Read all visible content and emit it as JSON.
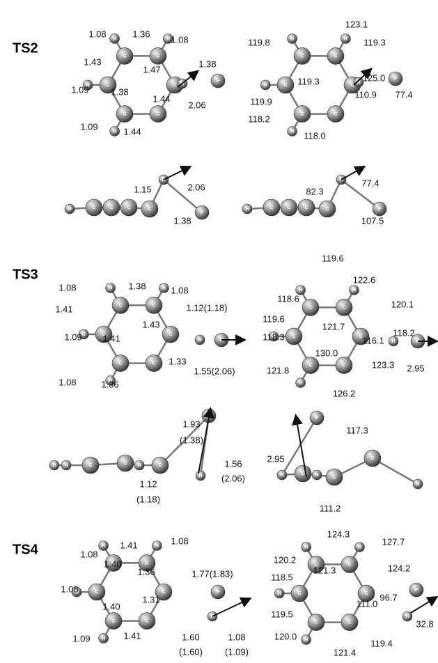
{
  "structures": [
    {
      "name": "TS2",
      "views": [
        {
          "labels": [
            "1.08",
            "1.36",
            "1.08",
            "1.43",
            "1.38",
            "1.47",
            "1.09",
            "1.38",
            "1.44",
            "2.06",
            "1.09",
            "1.44"
          ],
          "atoms": [
            "C",
            "C",
            "C",
            "C",
            "C",
            "C",
            "H",
            "H",
            "H",
            "H",
            "H",
            "F"
          ]
        },
        {
          "labels": [
            "123.1",
            "119.8",
            "119.3",
            "119.3",
            "125.0",
            "110.9",
            "119.9",
            "77.4",
            "118.2",
            "118.0"
          ],
          "atoms": [
            "C",
            "C",
            "C",
            "C",
            "C",
            "C",
            "H",
            "H",
            "H",
            "H",
            "H",
            "F"
          ]
        },
        {
          "labels": [
            "1.15",
            "2.06",
            "1.38"
          ],
          "atoms": [
            "H",
            "C",
            "C",
            "C",
            "C",
            "H",
            "F"
          ]
        },
        {
          "labels": [
            "77.4",
            "82.3",
            "107.5"
          ],
          "atoms": [
            "H",
            "C",
            "C",
            "C",
            "C",
            "H",
            "F"
          ]
        }
      ]
    },
    {
      "name": "TS3",
      "views": [
        {
          "labels": [
            "1.08",
            "1.38",
            "1.08",
            "1.41",
            "1.12(1.18)",
            "1.43",
            "1.09",
            "1.41",
            "1.33",
            "1.55(2.06)",
            "1.08",
            "1.36"
          ],
          "atoms": [
            "C",
            "C",
            "C",
            "C",
            "C",
            "C",
            "H",
            "H",
            "H",
            "H",
            "H",
            "F"
          ]
        },
        {
          "labels": [
            "119.6",
            "122.6",
            "118.6",
            "120.1",
            "119.6",
            "121.7",
            "118.2",
            "118.3",
            "116.1",
            "130.0",
            "121.8",
            "123.3",
            "2.95",
            "126.2"
          ],
          "atoms": [
            "C",
            "C",
            "C",
            "C",
            "C",
            "C",
            "H",
            "H",
            "H",
            "H",
            "H",
            "F"
          ]
        },
        {
          "labels": [
            "1.93",
            "(1.38)",
            "1.56",
            "(2.06)",
            "1.12",
            "(1.18)"
          ],
          "atoms": [
            "H",
            "H",
            "C",
            "C",
            "H",
            "C",
            "F",
            "H"
          ]
        },
        {
          "labels": [
            "117.3",
            "2.95",
            "111.2"
          ],
          "atoms": [
            "F",
            "H",
            "C",
            "H",
            "C",
            "C",
            "H"
          ]
        }
      ]
    },
    {
      "name": "TS4",
      "views": [
        {
          "labels": [
            "1.08",
            "1.41",
            "1.08",
            "1.40",
            "1.36",
            "1.77(1.83)",
            "1.08",
            "1.31",
            "1.40",
            "1.09",
            "1.41",
            "1.60",
            "(1.60)",
            "1.08",
            "(1.09)"
          ],
          "atoms": [
            "C",
            "C",
            "C",
            "C",
            "C",
            "C",
            "H",
            "H",
            "H",
            "H",
            "F",
            "H"
          ]
        },
        {
          "labels": [
            "124.3",
            "127.7",
            "120.2",
            "124.2",
            "121.3",
            "118.5",
            "111.0",
            "96.7",
            "32.8",
            "119.5",
            "120.0",
            "119.4",
            "121.4"
          ],
          "atoms": [
            "C",
            "C",
            "C",
            "C",
            "C",
            "C",
            "H",
            "H",
            "H",
            "H",
            "F",
            "H"
          ]
        }
      ]
    }
  ]
}
